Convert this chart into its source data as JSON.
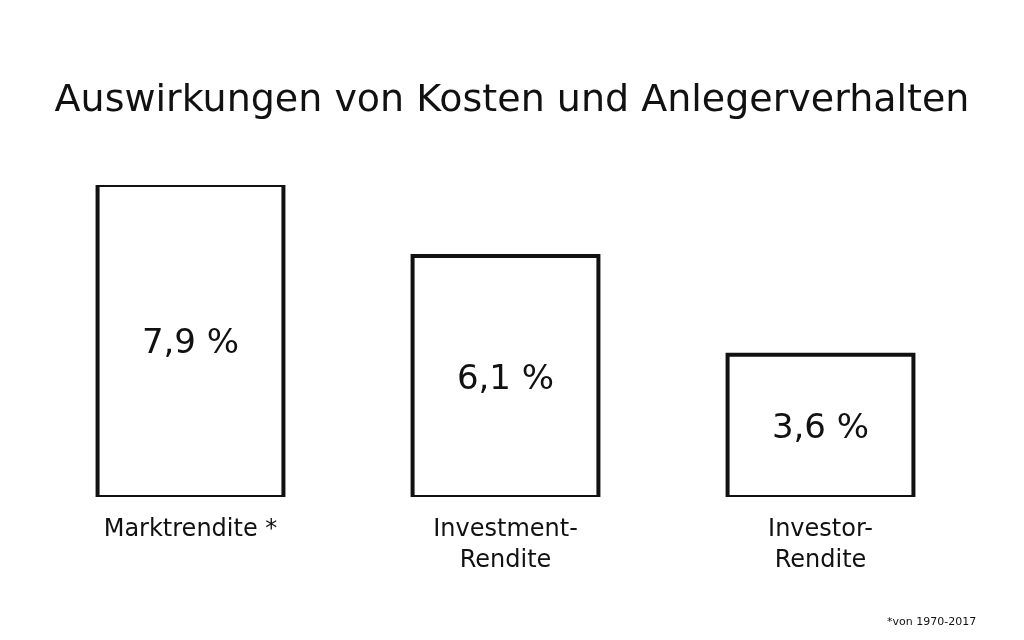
{
  "chart_data": {
    "type": "bar",
    "title": "Auswirkungen von Kosten und Anlegerverhalten",
    "categories": [
      "Marktrendite *",
      "Investment-\nRendite",
      "Investor-\nRendite"
    ],
    "values": [
      7.9,
      6.1,
      3.6
    ],
    "value_labels": [
      "7,9 %",
      "6,1 %",
      "3,6 %"
    ],
    "color": "#ffffff",
    "annotations": [
      "*von 1970-2017"
    ]
  }
}
